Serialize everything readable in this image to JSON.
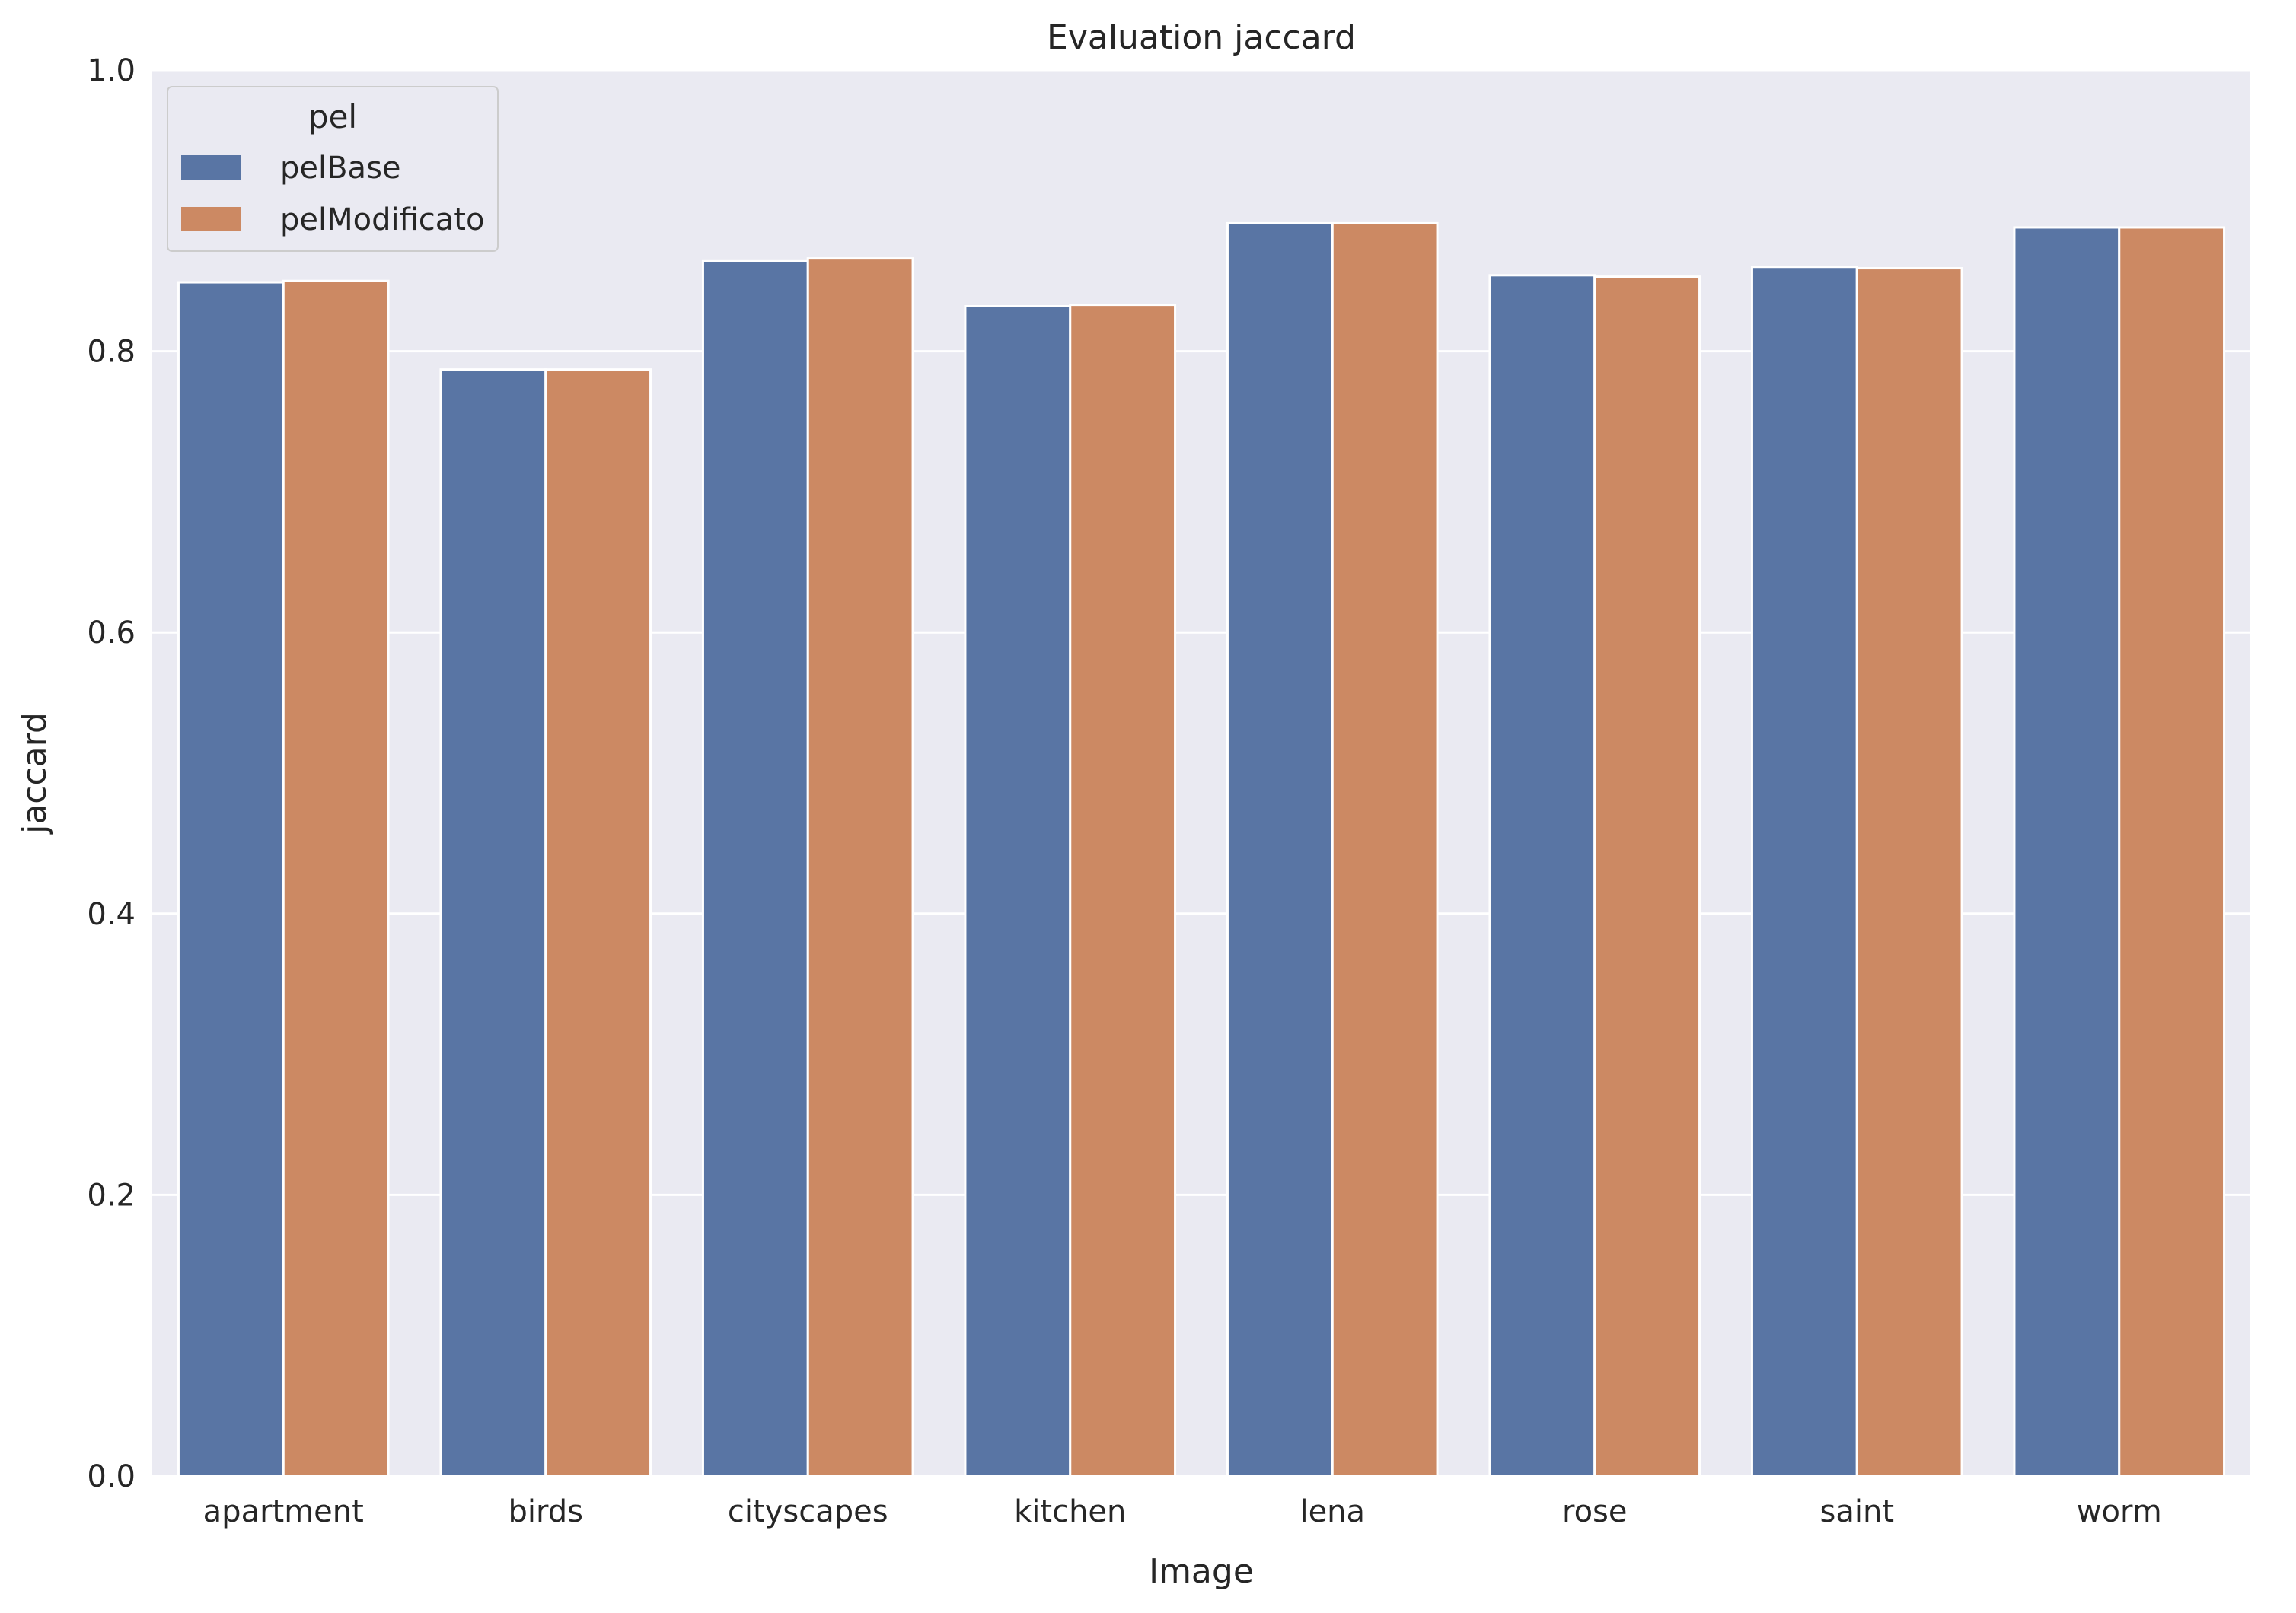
{
  "chart_data": {
    "type": "bar",
    "title": "Evaluation jaccard",
    "xlabel": "Image",
    "ylabel": "jaccard",
    "ylim": [
      0,
      1.0
    ],
    "yticks": [
      "0.0",
      "0.2",
      "0.4",
      "0.6",
      "0.8",
      "1.0"
    ],
    "grid": true,
    "legend": {
      "title": "pel",
      "placement": "top-left"
    },
    "categories": [
      "apartment",
      "birds",
      "cityscapes",
      "kitchen",
      "lena",
      "rose",
      "saint",
      "worm"
    ],
    "series": [
      {
        "name": "pelBase",
        "color": "#5975a4",
        "values": [
          0.849,
          0.787,
          0.864,
          0.832,
          0.891,
          0.854,
          0.86,
          0.888
        ]
      },
      {
        "name": "pelModificato",
        "color": "#cc8963",
        "values": [
          0.85,
          0.787,
          0.866,
          0.833,
          0.891,
          0.853,
          0.859,
          0.888
        ]
      }
    ]
  }
}
